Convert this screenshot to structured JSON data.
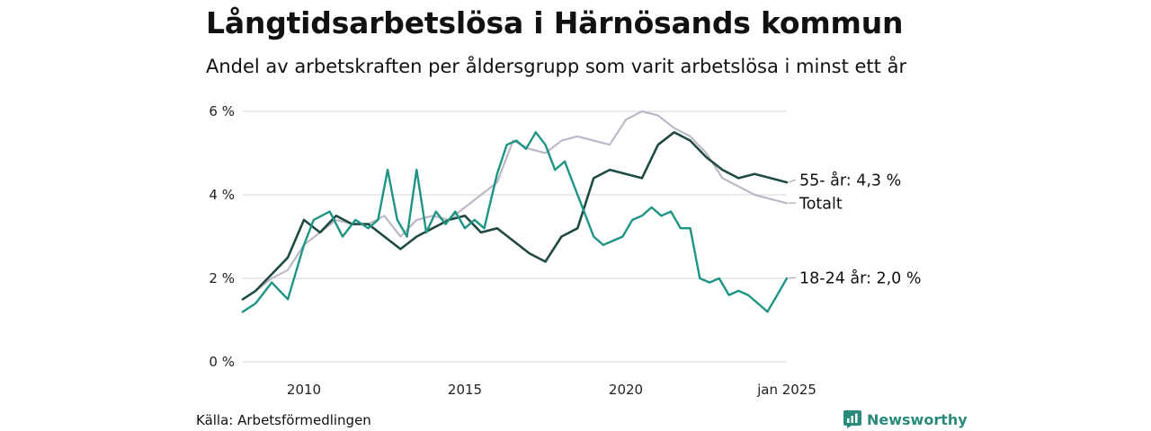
{
  "title": "Långtidsarbetslösa i Härnösands kommun",
  "subtitle": "Andel av arbetskraften per åldersgrupp som varit arbetslösa i minst ett år",
  "source": "Källa: Arbetsförmedlingen",
  "brand": "Newsworthy",
  "chart_data": {
    "type": "line",
    "x_range": [
      2008.1,
      2025.0
    ],
    "ylim": [
      0,
      6
    ],
    "y_ticks": [
      0,
      2,
      4,
      6
    ],
    "y_tick_labels": [
      "0 %",
      "2 %",
      "4 %",
      "6 %"
    ],
    "x_ticks": [
      2010,
      2015,
      2020,
      2025
    ],
    "x_tick_labels": [
      "2010",
      "2015",
      "2020",
      "jan 2025"
    ],
    "grid": true,
    "colors": {
      "totalt": "#bdb8c8",
      "age_55": "#1f4a44",
      "age_18_24": "#1e9484",
      "grid": "#dddddd"
    },
    "series": [
      {
        "name": "Totalt",
        "label": "Totalt",
        "x": [
          2008.1,
          2008.5,
          2009.0,
          2009.5,
          2010.0,
          2010.5,
          2011.0,
          2011.5,
          2012.0,
          2012.5,
          2013.0,
          2013.5,
          2014.0,
          2014.5,
          2015.0,
          2015.5,
          2016.0,
          2016.5,
          2017.0,
          2017.5,
          2018.0,
          2018.5,
          2019.0,
          2019.5,
          2020.0,
          2020.5,
          2021.0,
          2021.5,
          2022.0,
          2022.5,
          2023.0,
          2023.5,
          2024.0,
          2024.5,
          2025.0
        ],
        "values": [
          1.5,
          1.7,
          2.0,
          2.2,
          2.8,
          3.1,
          3.4,
          3.3,
          3.3,
          3.5,
          3.0,
          3.4,
          3.5,
          3.4,
          3.7,
          4.0,
          4.3,
          5.3,
          5.1,
          5.0,
          5.3,
          5.4,
          5.3,
          5.2,
          5.8,
          6.0,
          5.9,
          5.6,
          5.4,
          5.0,
          4.4,
          4.2,
          4.0,
          3.9,
          3.8
        ]
      },
      {
        "name": "55- år",
        "label": "55- år: 4,3 %",
        "x": [
          2008.1,
          2008.5,
          2009.0,
          2009.5,
          2010.0,
          2010.5,
          2011.0,
          2011.5,
          2012.0,
          2012.5,
          2013.0,
          2013.5,
          2014.0,
          2014.5,
          2015.0,
          2015.5,
          2016.0,
          2016.5,
          2017.0,
          2017.5,
          2018.0,
          2018.5,
          2019.0,
          2019.5,
          2020.0,
          2020.5,
          2021.0,
          2021.5,
          2022.0,
          2022.5,
          2023.0,
          2023.5,
          2024.0,
          2024.5,
          2025.0
        ],
        "values": [
          1.5,
          1.7,
          2.1,
          2.5,
          3.4,
          3.1,
          3.5,
          3.3,
          3.3,
          3.0,
          2.7,
          3.0,
          3.2,
          3.4,
          3.5,
          3.1,
          3.2,
          2.9,
          2.6,
          2.4,
          3.0,
          3.2,
          4.4,
          4.6,
          4.5,
          4.4,
          5.2,
          5.5,
          5.3,
          4.9,
          4.6,
          4.4,
          4.5,
          4.4,
          4.3
        ]
      },
      {
        "name": "18-24 år",
        "label": "18-24 år: 2,0 %",
        "x": [
          2008.1,
          2008.5,
          2009.0,
          2009.5,
          2010.0,
          2010.3,
          2010.8,
          2011.2,
          2011.6,
          2012.0,
          2012.3,
          2012.6,
          2012.9,
          2013.2,
          2013.5,
          2013.8,
          2014.1,
          2014.4,
          2014.7,
          2015.0,
          2015.3,
          2015.6,
          2016.0,
          2016.3,
          2016.6,
          2016.9,
          2017.2,
          2017.5,
          2017.8,
          2018.1,
          2018.4,
          2018.7,
          2019.0,
          2019.3,
          2019.6,
          2019.9,
          2020.2,
          2020.5,
          2020.8,
          2021.1,
          2021.4,
          2021.7,
          2022.0,
          2022.3,
          2022.6,
          2022.9,
          2023.2,
          2023.5,
          2023.8,
          2024.1,
          2024.4,
          2024.7,
          2025.0
        ],
        "values": [
          1.2,
          1.4,
          1.9,
          1.5,
          2.8,
          3.4,
          3.6,
          3.0,
          3.4,
          3.2,
          3.4,
          4.6,
          3.4,
          3.0,
          4.6,
          3.1,
          3.6,
          3.3,
          3.6,
          3.2,
          3.4,
          3.2,
          4.5,
          5.2,
          5.3,
          5.1,
          5.5,
          5.2,
          4.6,
          4.8,
          4.2,
          3.6,
          3.0,
          2.8,
          2.9,
          3.0,
          3.4,
          3.5,
          3.7,
          3.5,
          3.6,
          3.2,
          3.2,
          2.0,
          1.9,
          2.0,
          1.6,
          1.7,
          1.6,
          1.4,
          1.2,
          1.6,
          2.0
        ]
      }
    ]
  }
}
